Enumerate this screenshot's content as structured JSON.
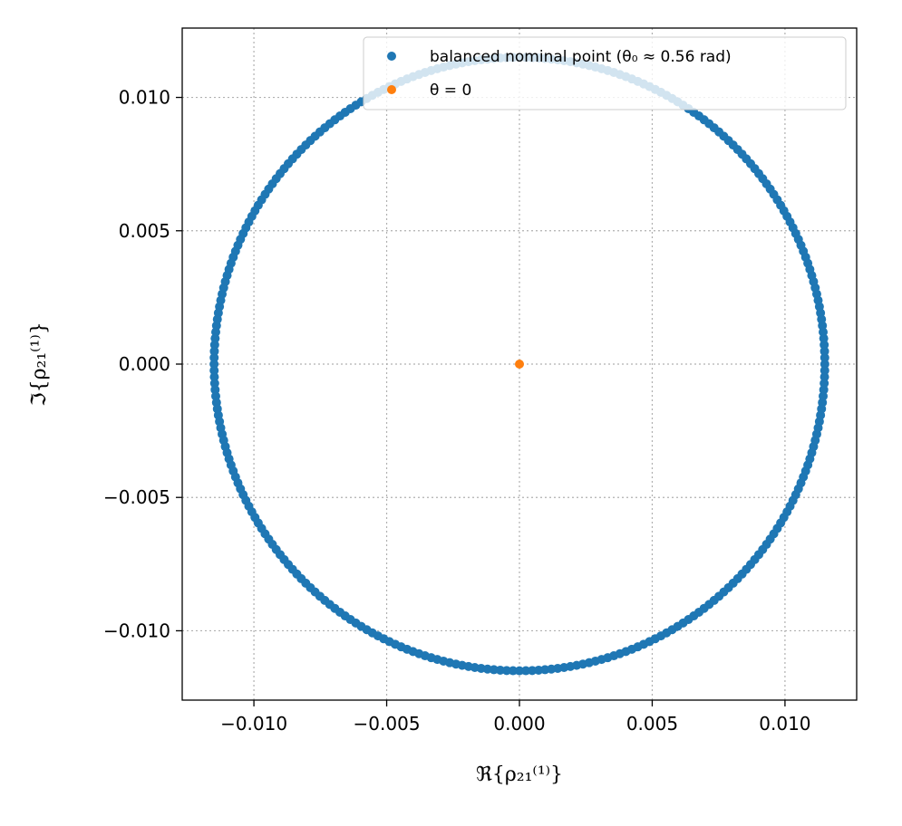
{
  "chart_data": {
    "type": "scatter",
    "title": "",
    "xlabel": "ℜ{ρ₂₁⁽¹⁾}",
    "ylabel": "ℑ{ρ₂₁⁽¹⁾}",
    "xlim": [
      -0.0127,
      0.0127
    ],
    "ylim": [
      -0.0126,
      0.0126
    ],
    "xticks": [
      -0.01,
      -0.005,
      0.0,
      0.005,
      0.01
    ],
    "yticks": [
      -0.01,
      -0.005,
      0.0,
      0.005,
      0.01
    ],
    "xtick_labels": [
      "−0.010",
      "−0.005",
      "0.000",
      "0.005",
      "0.010"
    ],
    "ytick_labels": [
      "−0.010",
      "−0.005",
      "0.000",
      "0.005",
      "0.010"
    ],
    "grid": true,
    "legend_position": "top-right",
    "series": [
      {
        "name": "balanced nominal point (θ₀ ≈ 0.56 rad)",
        "color": "#1f77b4",
        "shape": "circle",
        "radius": 0.0115,
        "center": [
          0.0,
          0.0
        ],
        "point_count": 300
      },
      {
        "name": "θ = 0",
        "color": "#ff7f0e",
        "x": [
          0.0
        ],
        "y": [
          0.0
        ]
      }
    ]
  }
}
